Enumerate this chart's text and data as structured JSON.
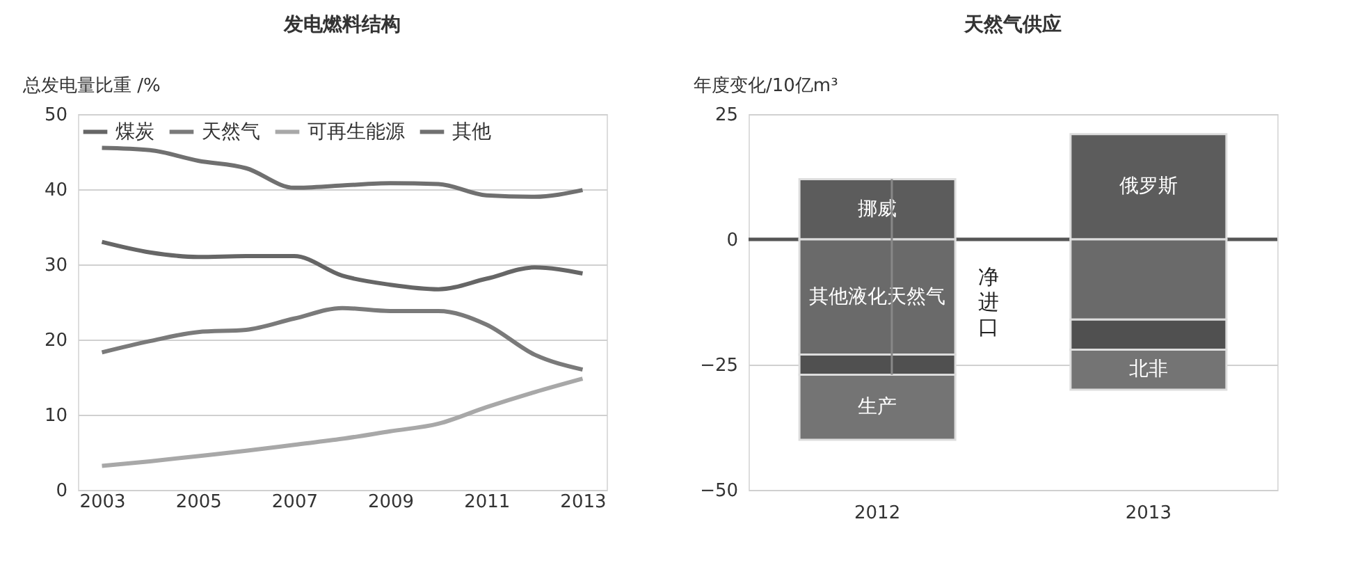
{
  "chart_data": [
    {
      "type": "line",
      "title": "发电燃料结构",
      "ylabel": "总发电量比重 /%",
      "x": [
        2003,
        2004,
        2005,
        2006,
        2007,
        2008,
        2009,
        2010,
        2011,
        2012,
        2013
      ],
      "series": [
        {
          "name": "煤炭",
          "color": "#666666",
          "values": [
            33.0,
            31.6,
            31.0,
            31.1,
            31.1,
            28.5,
            27.3,
            26.7,
            28.1,
            29.6,
            28.8
          ]
        },
        {
          "name": "天然气",
          "color": "#7a7a7a",
          "values": [
            18.3,
            19.8,
            21.0,
            21.3,
            22.8,
            24.2,
            23.8,
            23.8,
            22.0,
            18.0,
            16.0
          ]
        },
        {
          "name": "可再生能源",
          "color": "#a8a8a8",
          "values": [
            3.2,
            3.8,
            4.5,
            5.2,
            6.0,
            6.8,
            7.8,
            8.8,
            11.0,
            13.0,
            14.8
          ]
        },
        {
          "name": "其他",
          "color": "#707070",
          "values": [
            45.5,
            45.2,
            43.8,
            42.8,
            40.2,
            40.5,
            40.8,
            40.7,
            39.2,
            39.0,
            39.9
          ]
        }
      ],
      "xlim": [
        2002.5,
        2013.5
      ],
      "xticks": [
        2003,
        2005,
        2007,
        2009,
        2011,
        2013
      ],
      "ylim": [
        0,
        50
      ],
      "yticks": [
        0,
        10,
        20,
        30,
        40,
        50
      ],
      "grid": "y",
      "legend": "top",
      "marker": "none",
      "line_style": "solid"
    },
    {
      "type": "bar",
      "title": "天然气供应",
      "ylabel": "年度变化/10亿m³",
      "categories": [
        "2012",
        "2013"
      ],
      "series": [
        {
          "color": "#5c5c5c",
          "base": [
            0,
            0
          ],
          "values": [
            12,
            21
          ],
          "value_labels": [
            "挪威",
            "俄罗斯"
          ]
        },
        {
          "color": "#6a6a6a",
          "base": [
            -23,
            -16
          ],
          "values": [
            23,
            16
          ],
          "value_labels": [
            "其他液化天然气",
            null
          ]
        },
        {
          "color": "#505050",
          "base": [
            -27,
            -22
          ],
          "values": [
            4,
            6
          ]
        },
        {
          "color": "#747474",
          "base": [
            -40,
            -30
          ],
          "values": [
            13,
            8
          ],
          "value_labels": [
            "生产",
            "北非"
          ]
        }
      ],
      "ylim": [
        -50,
        25
      ],
      "yticks": [
        -50,
        -25,
        0,
        25
      ],
      "grid": "y",
      "ref_lines": [
        {
          "axis": "y",
          "value": 0,
          "color": "#555555"
        }
      ],
      "annotations": [
        "净进口"
      ]
    }
  ]
}
